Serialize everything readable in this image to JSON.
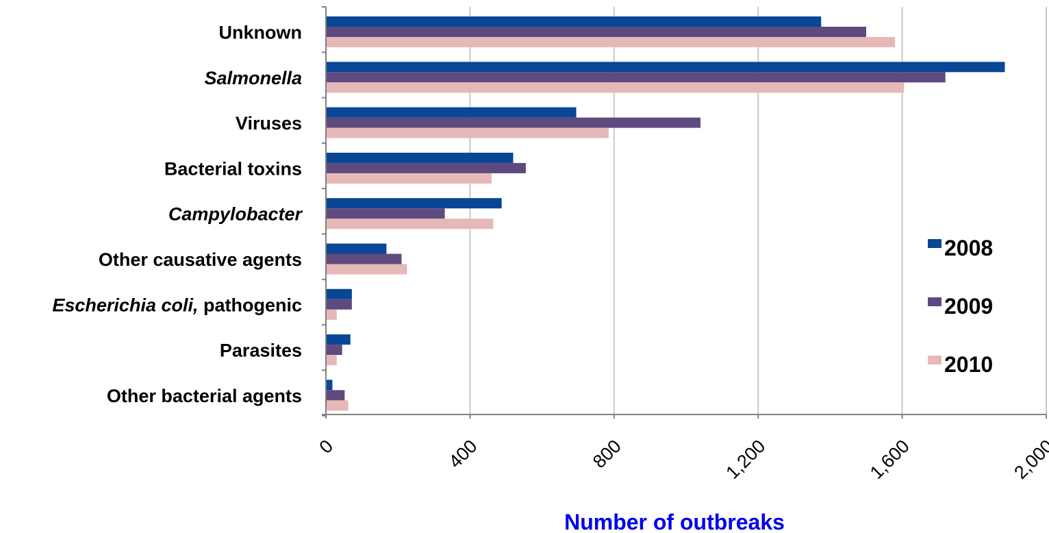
{
  "chart_data": {
    "type": "bar",
    "orientation": "horizontal",
    "categories": [
      "Unknown",
      "Salmonella",
      "Viruses",
      "Bacterial toxins",
      "Campylobacter",
      "Other causative agents",
      "Escherichia coli, pathogenic",
      "Parasites",
      "Other bacterial agents"
    ],
    "category_parts": [
      [
        {
          "text": "Unknown",
          "italic": false
        }
      ],
      [
        {
          "text": "Salmonella",
          "italic": true
        }
      ],
      [
        {
          "text": "Viruses",
          "italic": false
        }
      ],
      [
        {
          "text": "Bacterial toxins",
          "italic": false
        }
      ],
      [
        {
          "text": "Campylobacter",
          "italic": true
        }
      ],
      [
        {
          "text": "Other causative agents",
          "italic": false
        }
      ],
      [
        {
          "text": "Escherichia coli,",
          "italic": true
        },
        {
          "text": " pathogenic",
          "italic": false
        }
      ],
      [
        {
          "text": "Parasites",
          "italic": false
        }
      ],
      [
        {
          "text": "Other bacterial agents",
          "italic": false
        }
      ]
    ],
    "series": [
      {
        "name": "2008",
        "color": "#0a4696",
        "values": [
          1375,
          1885,
          695,
          520,
          488,
          168,
          72,
          68,
          18
        ]
      },
      {
        "name": "2009",
        "color": "#5e4a7e",
        "values": [
          1500,
          1720,
          1040,
          555,
          330,
          210,
          72,
          45,
          52
        ]
      },
      {
        "name": "2010",
        "color": "#e6b8b8",
        "values": [
          1580,
          1605,
          785,
          460,
          465,
          225,
          30,
          30,
          62
        ]
      }
    ],
    "xlabel": "Number of outbreaks",
    "ylabel": "",
    "xlim": [
      0,
      2000
    ],
    "xticks": [
      0,
      400,
      800,
      1200,
      1600,
      2000
    ],
    "xtick_labels": [
      "0",
      "400",
      "800",
      "1,200",
      "1,600",
      "2,000"
    ],
    "grid": true,
    "legend_position": "right"
  }
}
